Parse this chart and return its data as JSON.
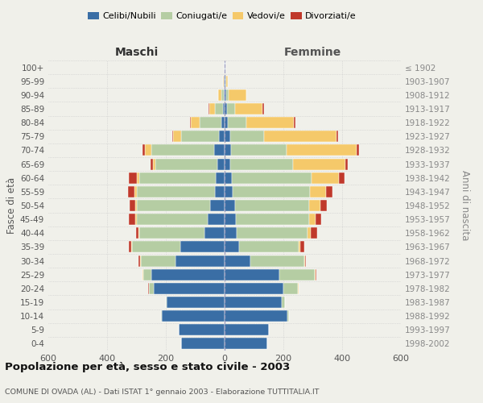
{
  "age_groups": [
    "0-4",
    "5-9",
    "10-14",
    "15-19",
    "20-24",
    "25-29",
    "30-34",
    "35-39",
    "40-44",
    "45-49",
    "50-54",
    "55-59",
    "60-64",
    "65-69",
    "70-74",
    "75-79",
    "80-84",
    "85-89",
    "90-94",
    "95-99",
    "100+"
  ],
  "birth_years": [
    "1998-2002",
    "1993-1997",
    "1988-1992",
    "1983-1987",
    "1978-1982",
    "1973-1977",
    "1968-1972",
    "1963-1967",
    "1958-1962",
    "1953-1957",
    "1948-1952",
    "1943-1947",
    "1938-1942",
    "1933-1937",
    "1928-1932",
    "1923-1927",
    "1918-1922",
    "1913-1917",
    "1908-1912",
    "1903-1907",
    "≤ 1902"
  ],
  "colors": {
    "celibi": "#3a6ea5",
    "coniugati": "#b5cda3",
    "vedovi": "#f5c96a",
    "divorziati": "#c0392b"
  },
  "males": {
    "celibi": [
      148,
      155,
      215,
      196,
      242,
      248,
      168,
      150,
      68,
      58,
      48,
      32,
      30,
      25,
      35,
      18,
      12,
      5,
      3,
      2,
      1
    ],
    "coniugati": [
      0,
      0,
      2,
      3,
      15,
      30,
      118,
      165,
      222,
      242,
      252,
      268,
      260,
      210,
      215,
      130,
      72,
      28,
      8,
      2,
      0
    ],
    "vedovi": [
      0,
      0,
      0,
      0,
      0,
      1,
      1,
      2,
      3,
      4,
      5,
      6,
      8,
      8,
      22,
      28,
      30,
      18,
      10,
      2,
      0
    ],
    "divorziati": [
      0,
      0,
      0,
      0,
      2,
      1,
      5,
      8,
      8,
      22,
      18,
      22,
      28,
      8,
      8,
      3,
      4,
      3,
      2,
      0,
      0
    ]
  },
  "females": {
    "nubili": [
      145,
      150,
      215,
      195,
      200,
      185,
      88,
      50,
      40,
      38,
      35,
      28,
      25,
      20,
      22,
      18,
      12,
      8,
      5,
      3,
      2
    ],
    "coniugate": [
      0,
      0,
      3,
      10,
      50,
      122,
      182,
      202,
      242,
      250,
      254,
      262,
      272,
      212,
      188,
      115,
      62,
      28,
      10,
      2,
      0
    ],
    "vedove": [
      0,
      0,
      0,
      0,
      1,
      2,
      3,
      5,
      10,
      22,
      36,
      56,
      92,
      178,
      238,
      248,
      162,
      92,
      58,
      5,
      1
    ],
    "divorziate": [
      0,
      0,
      0,
      0,
      2,
      2,
      5,
      15,
      22,
      20,
      22,
      20,
      20,
      10,
      10,
      5,
      4,
      5,
      2,
      2,
      0
    ]
  },
  "xlim": 600,
  "xticks": [
    -600,
    -400,
    -200,
    0,
    200,
    400,
    600
  ],
  "xtick_labels": [
    "600",
    "400",
    "200",
    "0",
    "200",
    "400",
    "600"
  ],
  "title": "Popolazione per età, sesso e stato civile - 2003",
  "subtitle": "COMUNE DI OVADA (AL) - Dati ISTAT 1° gennaio 2003 - Elaborazione TUTTITALIA.IT",
  "xlabel_left": "Maschi",
  "xlabel_right": "Femmine",
  "ylabel": "Fasce di età",
  "ylabel_right": "Anni di nascita",
  "legend_labels": [
    "Celibi/Nubili",
    "Coniugati/e",
    "Vedovi/e",
    "Divorziati/e"
  ],
  "bg_color": "#f0f0ea",
  "grid_color": "#c8c8c8",
  "bar_height": 0.82
}
